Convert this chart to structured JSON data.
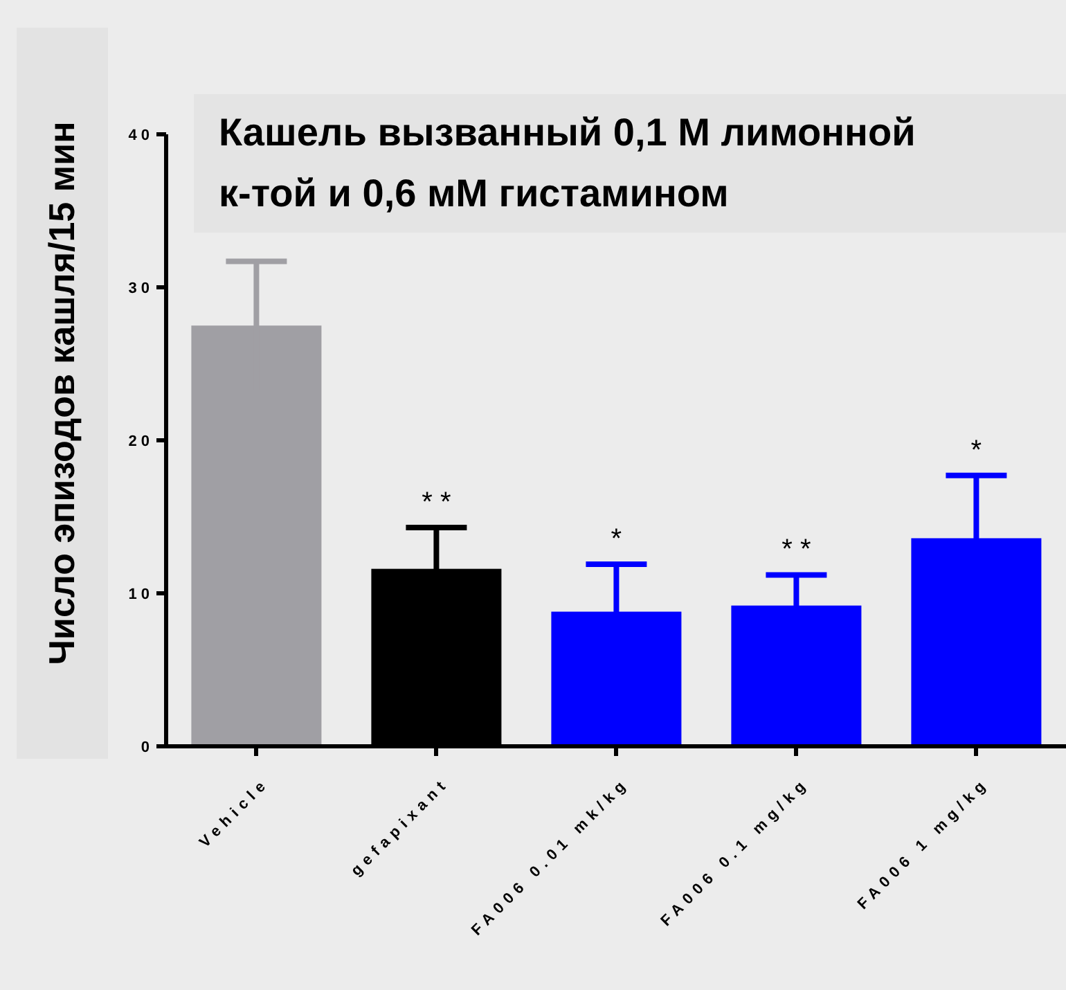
{
  "chart_data": {
    "type": "bar",
    "title": "Кашель вызванный 0,1 М лимонной к-той и 0,6 мМ гистамином",
    "ylabel": "Число эпизодов кашля/15 мин",
    "categories": [
      "Vehicle",
      "gefapixant",
      "FA006 0.01 mk/kg",
      "FA006 0.1 mg/kg",
      "FA006 1 mg/kg"
    ],
    "values": [
      27.5,
      11.6,
      8.8,
      9.2,
      13.6
    ],
    "errors": [
      4.2,
      2.7,
      3.1,
      2.0,
      4.1
    ],
    "colors": [
      "#a09fa4",
      "#000000",
      "#0000ff",
      "#0000ff",
      "#0000ff"
    ],
    "ylim": [
      0,
      40
    ],
    "yticks": [
      0,
      10,
      20,
      30,
      40
    ],
    "grid": false,
    "legend": false,
    "value_labels": [
      null,
      "* *",
      "*",
      "* *",
      "*"
    ]
  }
}
